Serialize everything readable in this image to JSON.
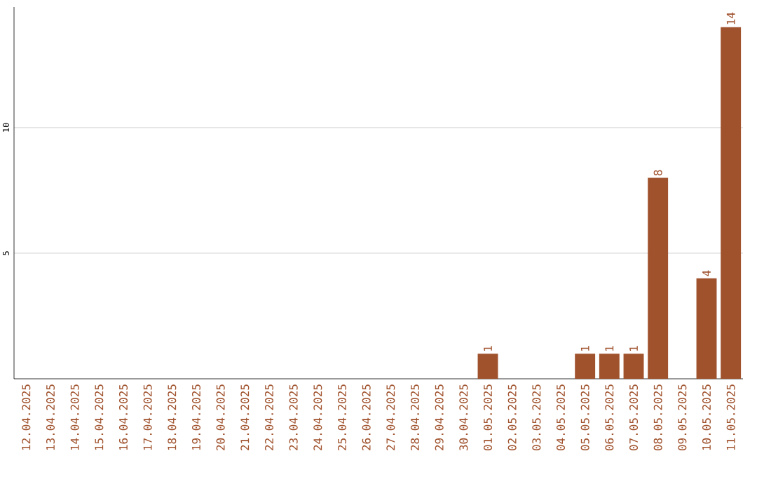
{
  "chart_data": {
    "type": "bar",
    "categories": [
      "12.04.2025",
      "13.04.2025",
      "14.04.2025",
      "15.04.2025",
      "16.04.2025",
      "17.04.2025",
      "18.04.2025",
      "19.04.2025",
      "20.04.2025",
      "21.04.2025",
      "22.04.2025",
      "23.04.2025",
      "24.04.2025",
      "25.04.2025",
      "26.04.2025",
      "27.04.2025",
      "28.04.2025",
      "29.04.2025",
      "30.04.2025",
      "01.05.2025",
      "02.05.2025",
      "03.05.2025",
      "04.05.2025",
      "05.05.2025",
      "06.05.2025",
      "07.05.2025",
      "08.05.2025",
      "09.05.2025",
      "10.05.2025",
      "11.05.2025"
    ],
    "values": [
      0,
      0,
      0,
      0,
      0,
      0,
      0,
      0,
      0,
      0,
      0,
      0,
      0,
      0,
      0,
      0,
      0,
      0,
      0,
      1,
      0,
      0,
      0,
      1,
      1,
      1,
      8,
      0,
      4,
      14
    ],
    "value_labels": [
      null,
      null,
      null,
      null,
      null,
      null,
      null,
      null,
      null,
      null,
      null,
      null,
      null,
      null,
      null,
      null,
      null,
      null,
      null,
      "1",
      null,
      null,
      null,
      "1",
      "1",
      "1",
      "8",
      null,
      "4",
      "14"
    ],
    "color": "#a0522d",
    "ylim": [
      0,
      14.8
    ],
    "yticks": [
      5,
      10
    ],
    "grid": "y"
  }
}
